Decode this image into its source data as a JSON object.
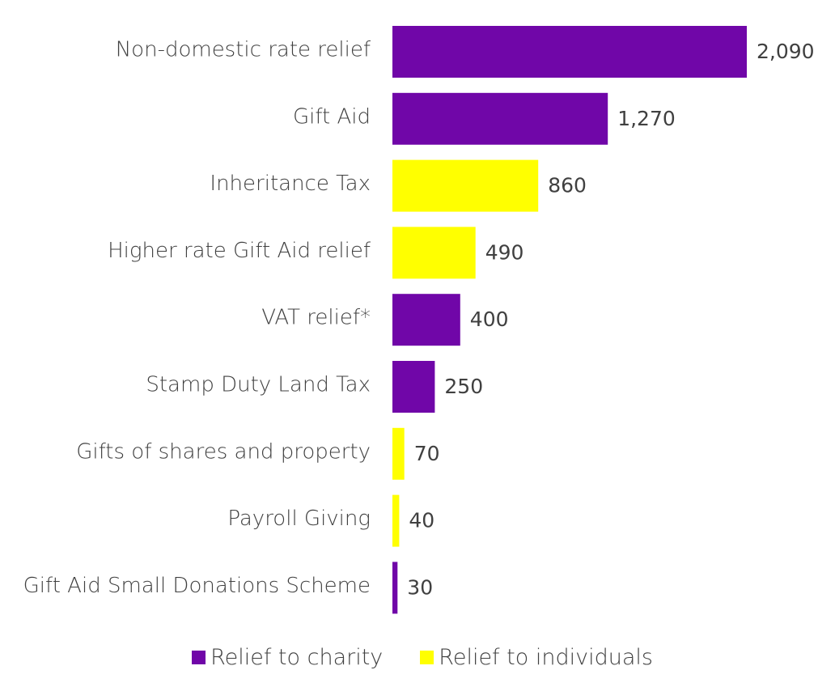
{
  "chart_data": {
    "type": "bar",
    "orientation": "horizontal",
    "categories": [
      "Non-domestic rate relief",
      "Gift Aid",
      "Inheritance Tax",
      "Higher rate Gift Aid relief",
      "VAT relief*",
      "Stamp Duty Land Tax",
      "Gifts of shares and property",
      "Payroll Giving",
      "Gift Aid Small Donations Scheme"
    ],
    "values": [
      2090,
      1270,
      860,
      490,
      400,
      250,
      70,
      40,
      30
    ],
    "value_labels": [
      "2,090",
      "1,270",
      "860",
      "490",
      "400",
      "250",
      "70",
      "40",
      "30"
    ],
    "groups": [
      "charity",
      "charity",
      "individuals",
      "individuals",
      "charity",
      "charity",
      "individuals",
      "individuals",
      "charity"
    ],
    "legend": [
      {
        "key": "charity",
        "name": "Relief to charity",
        "color": "#7006A8"
      },
      {
        "key": "individuals",
        "name": "Relief to individuals",
        "color": "#FFFF00"
      }
    ],
    "xlim": [
      0,
      2090
    ],
    "grid": false,
    "legend_position": "bottom"
  }
}
